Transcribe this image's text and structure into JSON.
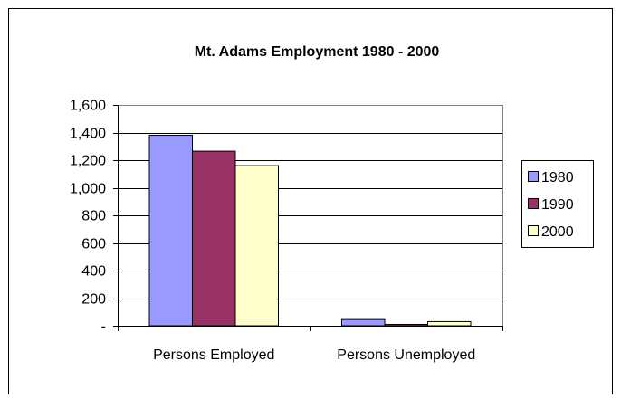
{
  "chart_data": {
    "type": "bar",
    "title": "Mt. Adams Employment 1980 - 2000",
    "xlabel": "",
    "ylabel": "",
    "categories": [
      "Persons Employed",
      "Persons Unemployed"
    ],
    "series": [
      {
        "name": "1980",
        "values": [
          1380,
          45
        ],
        "color": "#9999ff"
      },
      {
        "name": "1990",
        "values": [
          1265,
          10
        ],
        "color": "#993366"
      },
      {
        "name": "2000",
        "values": [
          1160,
          30
        ],
        "color": "#ffffcc"
      }
    ],
    "ylim": [
      0,
      1600
    ],
    "yticks": [
      0,
      200,
      400,
      600,
      800,
      1000,
      1200,
      1400,
      1600
    ],
    "ytick_labels": [
      "-",
      "200",
      "400",
      "600",
      "800",
      "1,000",
      "1,200",
      "1,400",
      "1,600"
    ],
    "grid": true,
    "legend_position": "right",
    "colors": {
      "plot_background": "#ffffff",
      "gridline": "#000000",
      "frame": "#000000"
    }
  }
}
